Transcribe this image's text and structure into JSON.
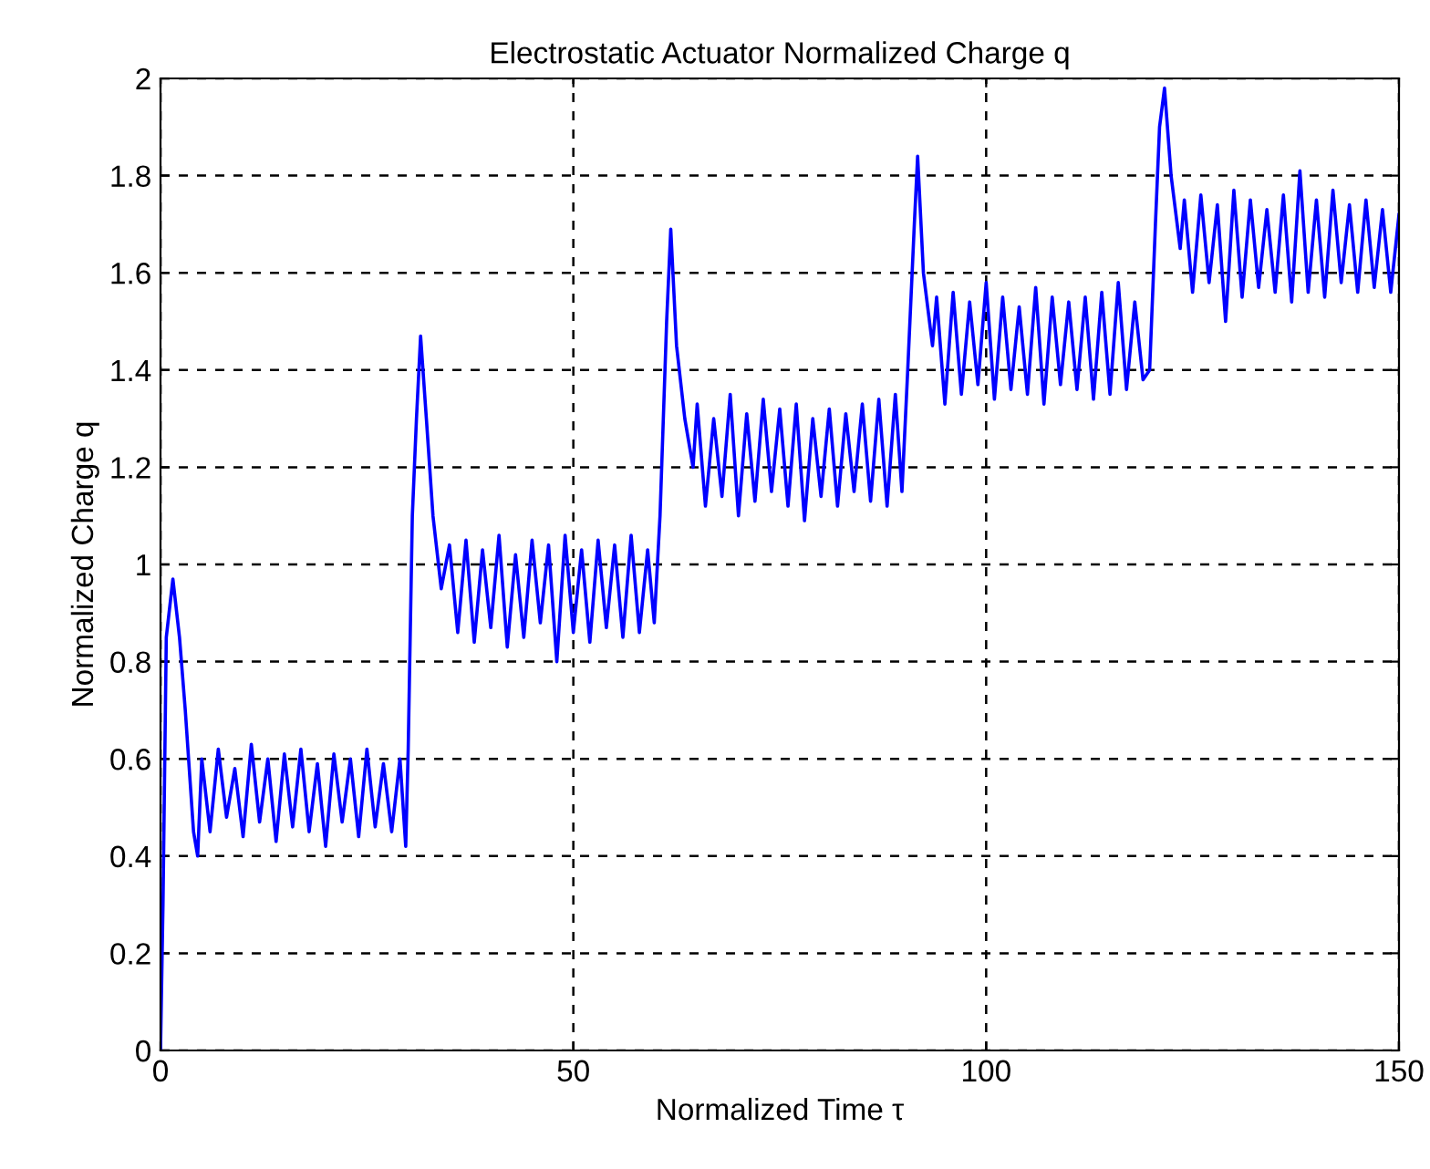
{
  "chart_data": {
    "type": "line",
    "title": "Electrostatic Actuator Normalized Charge q",
    "xlabel": "Normalized Time τ",
    "ylabel": "Normalized Charge q",
    "x": [
      0,
      0.3,
      0.7,
      1.5,
      2.3,
      3,
      4,
      4.5,
      5,
      6,
      7,
      8,
      9,
      10,
      11,
      12,
      13,
      14,
      15,
      16,
      17,
      18,
      19,
      20,
      21,
      22,
      23,
      24,
      25,
      26,
      27,
      28,
      29,
      29.7,
      30,
      30.5,
      31,
      31.5,
      32.2,
      33,
      34,
      35,
      36,
      37,
      38,
      39,
      40,
      41,
      42,
      43,
      44,
      45,
      46,
      47,
      48,
      49,
      50,
      51,
      52,
      53,
      54,
      55,
      56,
      57,
      58,
      59,
      59.8,
      60.5,
      61.3,
      61.8,
      62.5,
      63.5,
      64.5,
      65,
      66,
      67,
      68,
      69,
      70,
      71,
      72,
      73,
      74,
      75,
      76,
      77,
      78,
      79,
      80,
      81,
      82,
      83,
      84,
      85,
      86,
      87,
      88,
      89,
      89.8,
      90.5,
      91.3,
      91.7,
      92.4,
      93.5,
      94,
      95,
      96,
      97,
      98,
      99,
      100,
      101,
      102,
      103,
      104,
      105,
      106,
      107,
      108,
      109,
      110,
      111,
      112,
      113,
      114,
      115,
      116,
      117,
      118,
      119,
      119.8,
      120.5,
      121,
      121.6,
      122.4,
      123.5,
      124,
      125,
      126,
      127,
      128,
      129,
      130,
      131,
      132,
      133,
      134,
      135,
      136,
      137,
      138,
      139,
      140,
      141,
      142,
      143,
      144,
      145,
      146,
      147,
      148,
      149,
      150
    ],
    "series": [
      {
        "color": "#0000ff",
        "values": [
          0,
          0.3,
          0.85,
          0.97,
          0.85,
          0.7,
          0.45,
          0.4,
          0.6,
          0.45,
          0.62,
          0.48,
          0.58,
          0.44,
          0.63,
          0.47,
          0.6,
          0.43,
          0.61,
          0.46,
          0.62,
          0.45,
          0.59,
          0.42,
          0.61,
          0.47,
          0.6,
          0.44,
          0.62,
          0.46,
          0.59,
          0.45,
          0.6,
          0.42,
          0.62,
          1.1,
          1.3,
          1.47,
          1.3,
          1.1,
          0.95,
          1.04,
          0.86,
          1.05,
          0.84,
          1.03,
          0.87,
          1.06,
          0.83,
          1.02,
          0.85,
          1.05,
          0.88,
          1.04,
          0.8,
          1.06,
          0.86,
          1.03,
          0.84,
          1.05,
          0.87,
          1.04,
          0.85,
          1.06,
          0.86,
          1.03,
          0.88,
          1.1,
          1.5,
          1.69,
          1.45,
          1.3,
          1.2,
          1.33,
          1.12,
          1.3,
          1.14,
          1.35,
          1.1,
          1.31,
          1.13,
          1.34,
          1.15,
          1.32,
          1.12,
          1.33,
          1.09,
          1.3,
          1.14,
          1.32,
          1.12,
          1.31,
          1.15,
          1.33,
          1.13,
          1.34,
          1.12,
          1.35,
          1.15,
          1.4,
          1.7,
          1.84,
          1.6,
          1.45,
          1.55,
          1.33,
          1.56,
          1.35,
          1.54,
          1.37,
          1.58,
          1.34,
          1.55,
          1.36,
          1.53,
          1.35,
          1.57,
          1.33,
          1.55,
          1.37,
          1.54,
          1.36,
          1.55,
          1.34,
          1.56,
          1.35,
          1.58,
          1.36,
          1.54,
          1.38,
          1.4,
          1.7,
          1.9,
          1.98,
          1.8,
          1.65,
          1.75,
          1.56,
          1.76,
          1.58,
          1.74,
          1.5,
          1.77,
          1.55,
          1.75,
          1.57,
          1.73,
          1.56,
          1.76,
          1.54,
          1.81,
          1.56,
          1.75,
          1.55,
          1.77,
          1.58,
          1.74,
          1.56,
          1.75,
          1.57,
          1.73,
          1.56,
          1.72
        ]
      }
    ],
    "xlim": [
      0,
      150
    ],
    "xticks": [
      0,
      50,
      100,
      150
    ],
    "ylim": [
      0,
      2
    ],
    "yticks": [
      0,
      0.2,
      0.4,
      0.6,
      0.8,
      1,
      1.2,
      1.4,
      1.6,
      1.8,
      2
    ],
    "grid": true,
    "legend": false,
    "marker": "none",
    "line_style": "solid"
  }
}
